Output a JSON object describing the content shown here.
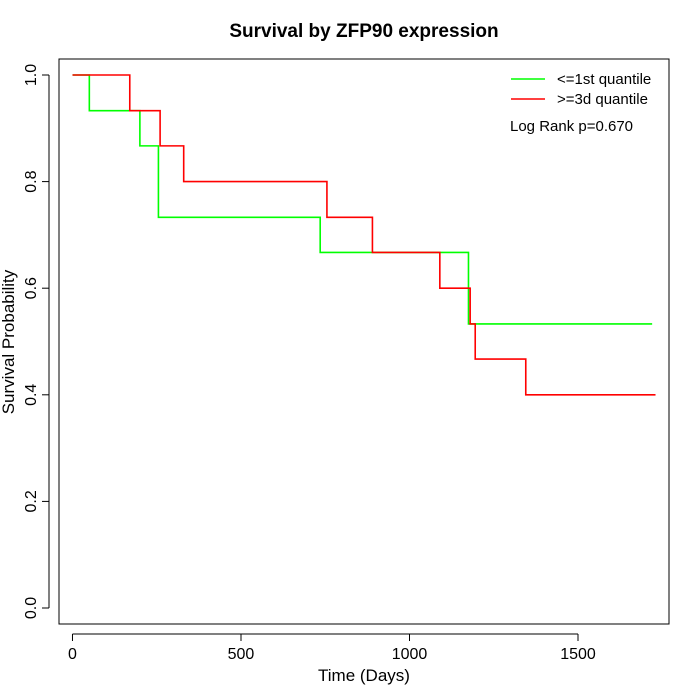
{
  "chart_data": {
    "type": "line",
    "title": "Survival by ZFP90 expression",
    "xlabel": "Time (Days)",
    "ylabel": "Survival Probability",
    "xlim": [
      -40,
      1770
    ],
    "ylim": [
      -0.03,
      1.03
    ],
    "x_ticks": [
      0,
      500,
      1000,
      1500
    ],
    "y_ticks": [
      0.0,
      0.2,
      0.4,
      0.6,
      0.8,
      1.0
    ],
    "x_tick_labels": [
      "0",
      "500",
      "1000",
      "1500"
    ],
    "y_tick_labels": [
      "0.0",
      "0.2",
      "0.4",
      "0.6",
      "0.8",
      "1.0"
    ],
    "grid": false,
    "legend_position": "top-right",
    "annotation": "Log Rank p=0.670",
    "series": [
      {
        "name": "<=1st quantile",
        "color": "#00ff00",
        "step": true,
        "x": [
          0,
          50,
          200,
          255,
          735,
          1175,
          1720
        ],
        "y": [
          1.0,
          0.933,
          0.867,
          0.733,
          0.667,
          0.533,
          0.533
        ]
      },
      {
        "name": ">=3d quantile",
        "color": "#ff0000",
        "step": true,
        "x": [
          0,
          170,
          260,
          330,
          755,
          890,
          1090,
          1180,
          1195,
          1345,
          1730
        ],
        "y": [
          1.0,
          0.933,
          0.867,
          0.8,
          0.733,
          0.667,
          0.6,
          0.533,
          0.467,
          0.4,
          0.4
        ]
      }
    ]
  }
}
